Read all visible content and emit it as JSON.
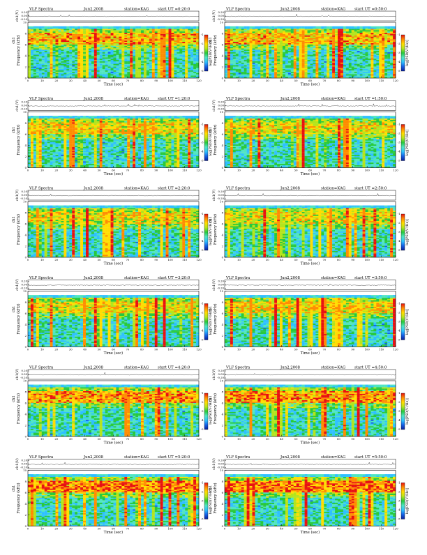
{
  "page": {
    "background": "#ffffff",
    "colormap": [
      "#0a1f99",
      "#1560e6",
      "#2ec0ff",
      "#4fe5c2",
      "#27c93c",
      "#b4e41c",
      "#ffdd00",
      "#ff8c00",
      "#e81010"
    ]
  },
  "chart_data": [
    {
      "type": "heatmap",
      "title_left": "VLF Spectra",
      "date": "Jun2,2008",
      "station": "station=KAG",
      "start": "start UT =0:20:0",
      "top_ylabel": "ch1(V)",
      "top_ticks": [
        "0.20",
        "0.00",
        "-0.20"
      ],
      "ylabel_channel": "ch1",
      "ylabel": "Frequency (kHz)",
      "y_ticks": [
        "0",
        "2",
        "4",
        "6",
        "8",
        "10"
      ],
      "ylim": [
        0,
        10
      ],
      "xlabel": "Time (sec)",
      "x_ticks": [
        "0",
        "10",
        "20",
        "30",
        "40",
        "50",
        "60",
        "70",
        "80",
        "90",
        "100",
        "110",
        "120"
      ],
      "xlim": [
        0,
        120
      ],
      "colorbar_label": "log[PSD(V²/Hz)]",
      "colorbar_ticks": [
        "-1",
        "-2",
        "-3",
        "-4",
        "-5"
      ],
      "band_intensity": 0.75
    },
    {
      "type": "heatmap",
      "title_left": "VLF Spectra",
      "date": "Jun2,2008",
      "station": "station=KAG",
      "start": "start UT =0:50:0",
      "top_ylabel": "ch1(V)",
      "top_ticks": [
        "0.20",
        "0.00",
        "-0.20"
      ],
      "ylabel_channel": "ch1",
      "ylabel": "Frequency (kHz)",
      "y_ticks": [
        "0",
        "2",
        "4",
        "6",
        "8",
        "10"
      ],
      "ylim": [
        0,
        10
      ],
      "xlabel": "Time (sec)",
      "x_ticks": [
        "0",
        "10",
        "20",
        "30",
        "40",
        "50",
        "60",
        "70",
        "80",
        "90",
        "100",
        "110",
        "120"
      ],
      "xlim": [
        0,
        120
      ],
      "colorbar_label": "log[PSD(V²/Hz)]",
      "colorbar_ticks": [
        "-1",
        "-2",
        "-3",
        "-4",
        "-5"
      ],
      "band_intensity": 0.7
    },
    {
      "type": "heatmap",
      "title_left": "VLF Spectra",
      "date": "Jun2,2008",
      "station": "station=KAG",
      "start": "start UT =1:20:0",
      "top_ylabel": "ch1(V)",
      "top_ticks": [
        "0.20",
        "0.00",
        "-0.20"
      ],
      "ylabel_channel": "ch1",
      "ylabel": "Frequency (kHz)",
      "y_ticks": [
        "0",
        "2",
        "4",
        "6",
        "8",
        "10"
      ],
      "ylim": [
        0,
        10
      ],
      "xlabel": "Time (sec)",
      "x_ticks": [
        "0",
        "10",
        "20",
        "30",
        "40",
        "50",
        "60",
        "70",
        "80",
        "90",
        "100",
        "110",
        "120"
      ],
      "xlim": [
        0,
        120
      ],
      "colorbar_label": "log[PSD(V²/Hz)]",
      "colorbar_ticks": [
        "-1",
        "-2",
        "-3",
        "-4",
        "-5"
      ],
      "band_intensity": 0.6
    },
    {
      "type": "heatmap",
      "title_left": "VLF Spectra",
      "date": "Jun2,2008",
      "station": "station=KAG",
      "start": "start UT =1:50:0",
      "top_ylabel": "ch1(V)",
      "top_ticks": [
        "0.20",
        "0.00",
        "-0.20"
      ],
      "ylabel_channel": "ch1",
      "ylabel": "Frequency (kHz)",
      "y_ticks": [
        "0",
        "2",
        "4",
        "6",
        "8",
        "10"
      ],
      "ylim": [
        0,
        10
      ],
      "xlabel": "Time (sec)",
      "x_ticks": [
        "0",
        "10",
        "20",
        "30",
        "40",
        "50",
        "60",
        "70",
        "80",
        "90",
        "100",
        "110",
        "120"
      ],
      "xlim": [
        0,
        120
      ],
      "colorbar_label": "log[PSD(V²/Hz)]",
      "colorbar_ticks": [
        "-1",
        "-2",
        "-3",
        "-4",
        "-5"
      ],
      "band_intensity": 0.55
    },
    {
      "type": "heatmap",
      "title_left": "VLF Spectra",
      "date": "Jun2,2008",
      "station": "station=KAG",
      "start": "start UT =2:20:0",
      "top_ylabel": "ch1(V)",
      "top_ticks": [
        "0.20",
        "0.00",
        "-0.20"
      ],
      "ylabel_channel": "ch1",
      "ylabel": "Frequency (kHz)",
      "y_ticks": [
        "0",
        "2",
        "4",
        "6",
        "8",
        "10"
      ],
      "ylim": [
        0,
        10
      ],
      "xlabel": "Time (sec)",
      "x_ticks": [
        "0",
        "10",
        "20",
        "30",
        "40",
        "50",
        "60",
        "70",
        "80",
        "90",
        "100",
        "110",
        "120"
      ],
      "xlim": [
        0,
        120
      ],
      "colorbar_label": "log[PSD(V²/Hz)]",
      "colorbar_ticks": [
        "-1",
        "-2",
        "-3",
        "-4",
        "-5"
      ],
      "band_intensity": 0.5
    },
    {
      "type": "heatmap",
      "title_left": "VLF Spectra",
      "date": "Jun2,2008",
      "station": "station=KAG",
      "start": "start UT =2:50:0",
      "top_ylabel": "ch1(V)",
      "top_ticks": [
        "0.20",
        "0.00",
        "-0.20"
      ],
      "ylabel_channel": "ch1",
      "ylabel": "Frequency (kHz)",
      "y_ticks": [
        "0",
        "2",
        "4",
        "6",
        "8",
        "10"
      ],
      "ylim": [
        0,
        10
      ],
      "xlabel": "Time (sec)",
      "x_ticks": [
        "0",
        "10",
        "20",
        "30",
        "40",
        "50",
        "60",
        "70",
        "80",
        "90",
        "100",
        "110",
        "120"
      ],
      "xlim": [
        0,
        120
      ],
      "colorbar_label": "log[PSD(V²/Hz)]",
      "colorbar_ticks": [
        "-1",
        "-2",
        "-3",
        "-4",
        "-5"
      ],
      "band_intensity": 0.5
    },
    {
      "type": "heatmap",
      "title_left": "VLF Spectra",
      "date": "Jun2,2008",
      "station": "station=KAG",
      "start": "start UT =3:20:0",
      "top_ylabel": "ch1(V)",
      "top_ticks": [
        "0.20",
        "0.00",
        "-0.20"
      ],
      "ylabel_channel": "ch1",
      "ylabel": "Frequency (kHz)",
      "y_ticks": [
        "0",
        "2",
        "4",
        "6",
        "8",
        "10"
      ],
      "ylim": [
        0,
        10
      ],
      "xlabel": "Time (sec)",
      "x_ticks": [
        "0",
        "10",
        "20",
        "30",
        "40",
        "50",
        "60",
        "70",
        "80",
        "90",
        "100",
        "110",
        "120"
      ],
      "xlim": [
        0,
        120
      ],
      "colorbar_label": "log[PSD(V²/Hz)]",
      "colorbar_ticks": [
        "-1",
        "-2",
        "-3",
        "-4",
        "-5"
      ],
      "band_intensity": 0.55
    },
    {
      "type": "heatmap",
      "title_left": "VLF Spectra",
      "date": "Jun2,2008",
      "station": "station=KAG",
      "start": "start UT =3:50:0",
      "top_ylabel": "ch1(V)",
      "top_ticks": [
        "0.20",
        "0.00",
        "-0.20"
      ],
      "ylabel_channel": "ch1",
      "ylabel": "Frequency (kHz)",
      "y_ticks": [
        "0",
        "2",
        "4",
        "6",
        "8",
        "10"
      ],
      "ylim": [
        0,
        10
      ],
      "xlabel": "Time (sec)",
      "x_ticks": [
        "0",
        "10",
        "20",
        "30",
        "40",
        "50",
        "60",
        "70",
        "80",
        "90",
        "100",
        "110",
        "120"
      ],
      "xlim": [
        0,
        120
      ],
      "colorbar_label": "log[PSD(V²/Hz)]",
      "colorbar_ticks": [
        "-1",
        "-2",
        "-3",
        "-4",
        "-5"
      ],
      "band_intensity": 0.6
    },
    {
      "type": "heatmap",
      "title_left": "VLF Spectra",
      "date": "Jun2,2008",
      "station": "station=KAG",
      "start": "start UT =4:20:0",
      "top_ylabel": "ch1(V)",
      "top_ticks": [
        "0.20",
        "0.00",
        "-0.20"
      ],
      "ylabel_channel": "ch1",
      "ylabel": "Frequency (kHz)",
      "y_ticks": [
        "0",
        "2",
        "4",
        "6",
        "8",
        "10"
      ],
      "ylim": [
        0,
        10
      ],
      "xlabel": "Time (sec)",
      "x_ticks": [
        "0",
        "10",
        "20",
        "30",
        "40",
        "50",
        "60",
        "70",
        "80",
        "90",
        "100",
        "110",
        "120"
      ],
      "xlim": [
        0,
        120
      ],
      "colorbar_label": "log[PSD(V²/Hz)]",
      "colorbar_ticks": [
        "-1",
        "-2",
        "-3",
        "-4",
        "-5"
      ],
      "band_intensity": 0.85
    },
    {
      "type": "heatmap",
      "title_left": "VLF Spectra",
      "date": "Jun2,2008",
      "station": "station=KAG",
      "start": "start UT =4:50:0",
      "top_ylabel": "ch1(V)",
      "top_ticks": [
        "0.20",
        "0.00",
        "-0.20"
      ],
      "ylabel_channel": "ch1",
      "ylabel": "Frequency (kHz)",
      "y_ticks": [
        "0",
        "2",
        "4",
        "6",
        "8",
        "10"
      ],
      "ylim": [
        0,
        10
      ],
      "xlabel": "Time (sec)",
      "x_ticks": [
        "0",
        "10",
        "20",
        "30",
        "40",
        "50",
        "60",
        "70",
        "80",
        "90",
        "100",
        "110",
        "120"
      ],
      "xlim": [
        0,
        120
      ],
      "colorbar_label": "log[PSD(V²/Hz)]",
      "colorbar_ticks": [
        "-1",
        "-2",
        "-3",
        "-4",
        "-5"
      ],
      "band_intensity": 0.85
    },
    {
      "type": "heatmap",
      "title_left": "VLF Spectra",
      "date": "Jun2,2008",
      "station": "station=KAG",
      "start": "start UT =5:20:0",
      "top_ylabel": "ch1(V)",
      "top_ticks": [
        "0.20",
        "0.00",
        "-0.20"
      ],
      "ylabel_channel": "ch1",
      "ylabel": "Frequency (kHz)",
      "y_ticks": [
        "0",
        "2",
        "4",
        "6",
        "8",
        "10"
      ],
      "ylim": [
        0,
        10
      ],
      "xlabel": "Time (sec)",
      "x_ticks": [
        "0",
        "10",
        "20",
        "30",
        "40",
        "50",
        "60",
        "70",
        "80",
        "90",
        "100",
        "110",
        "120"
      ],
      "xlim": [
        0,
        120
      ],
      "colorbar_label": "log[PSD(V²/Hz)]",
      "colorbar_ticks": [
        "-1",
        "-2",
        "-3",
        "-4",
        "-5"
      ],
      "band_intensity": 0.95
    },
    {
      "type": "heatmap",
      "title_left": "VLF Spectra",
      "date": "Jun2,2008",
      "station": "station=KAG",
      "start": "start UT =5:50:0",
      "top_ylabel": "ch1(V)",
      "top_ticks": [
        "0.20",
        "0.00",
        "-0.20"
      ],
      "ylabel_channel": "ch1",
      "ylabel": "Frequency (kHz)",
      "y_ticks": [
        "0",
        "2",
        "4",
        "6",
        "8",
        "10"
      ],
      "ylim": [
        0,
        10
      ],
      "xlabel": "Time (sec)",
      "x_ticks": [
        "0",
        "10",
        "20",
        "30",
        "40",
        "50",
        "60",
        "70",
        "80",
        "90",
        "100",
        "110",
        "120"
      ],
      "xlim": [
        0,
        120
      ],
      "colorbar_label": "log[PSD(V²/Hz)]",
      "colorbar_ticks": [
        "-1",
        "-2",
        "-3",
        "-4",
        "-5"
      ],
      "band_intensity": 0.95
    }
  ]
}
